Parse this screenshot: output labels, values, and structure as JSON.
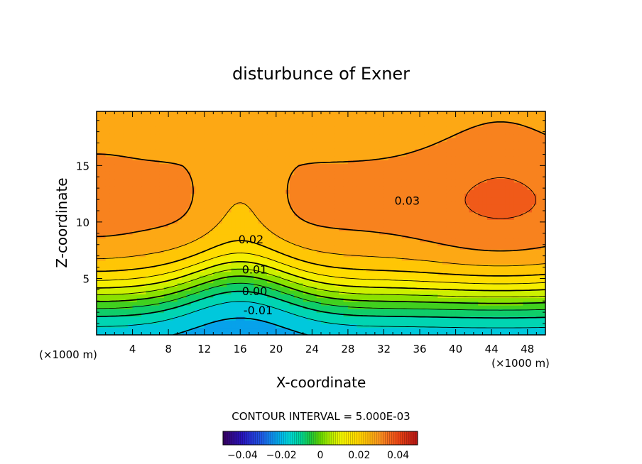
{
  "chart_data": {
    "type": "contour",
    "title": "disturbunce of Exner",
    "xlabel": "X-coordinate",
    "ylabel": "Z-coordinate",
    "x_unit_left": "(×1000 m)",
    "x_unit_right": "(×1000 m)",
    "xlim": [
      0,
      50
    ],
    "ylim": [
      0,
      19.8
    ],
    "x_ticks": [
      4,
      8,
      12,
      16,
      20,
      24,
      28,
      32,
      36,
      40,
      44,
      48
    ],
    "x_tick_labels": [
      "4",
      "8",
      "12",
      "16",
      "20",
      "24",
      "28",
      "32",
      "36",
      "40",
      "44",
      "48"
    ],
    "y_ticks": [
      5,
      10,
      15
    ],
    "y_tick_labels": [
      "5",
      "10",
      "15"
    ],
    "contour_interval_text": "CONTOUR INTERVAL = 5.000E-03",
    "contour_interval": 0.005,
    "contour_labels": [
      {
        "text": "0.03",
        "x": 34.6,
        "z": 11.9
      },
      {
        "text": "0.02",
        "x": 17.2,
        "z": 8.5
      },
      {
        "text": "0.01",
        "x": 17.6,
        "z": 5.8
      },
      {
        "text": "0.00",
        "x": 17.6,
        "z": 3.9
      },
      {
        "text": "-0.01",
        "x": 18.0,
        "z": 2.2
      }
    ],
    "field_features": [
      {
        "kind": "maximum",
        "x": 0,
        "z": 11.5,
        "value": 0.032
      },
      {
        "kind": "maximum",
        "x": 45,
        "z": 11.0,
        "value": 0.034
      },
      {
        "kind": "saddle",
        "x": 16,
        "z": 11.5,
        "value": 0.025
      },
      {
        "kind": "minimum",
        "x": 16,
        "z": 0.3,
        "value": -0.022
      }
    ],
    "colorbar": {
      "ticks": [
        -0.04,
        -0.02,
        0,
        0.02,
        0.04
      ],
      "tick_labels": [
        "−0.04",
        "−0.02",
        "0",
        "0.02",
        "0.04"
      ],
      "range": [
        -0.05,
        0.05
      ]
    }
  }
}
